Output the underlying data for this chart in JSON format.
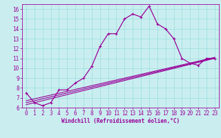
{
  "xlabel": "Windchill (Refroidissement éolien,°C)",
  "bg_color": "#caeef0",
  "line_color": "#990099",
  "grid_color": "#99dddd",
  "xlim": [
    -0.5,
    23.5
  ],
  "ylim": [
    6,
    16.5
  ],
  "yticks": [
    6,
    7,
    8,
    9,
    10,
    11,
    12,
    13,
    14,
    15,
    16
  ],
  "xticks": [
    0,
    1,
    2,
    3,
    4,
    5,
    6,
    7,
    8,
    9,
    10,
    11,
    12,
    13,
    14,
    15,
    16,
    17,
    18,
    19,
    20,
    21,
    22,
    23
  ],
  "line1_x": [
    0,
    1,
    2,
    3,
    4,
    5,
    6,
    7,
    8,
    9,
    10,
    11,
    12,
    13,
    14,
    15,
    16,
    17,
    18,
    19,
    20,
    21,
    22,
    23
  ],
  "line1_y": [
    7.5,
    6.5,
    6.2,
    6.5,
    7.8,
    7.8,
    8.5,
    9.0,
    10.2,
    12.2,
    13.5,
    13.5,
    15.0,
    15.5,
    15.2,
    16.3,
    14.5,
    14.0,
    13.0,
    11.0,
    10.5,
    10.3,
    11.0,
    11.0
  ],
  "line2_x": [
    0,
    23
  ],
  "line2_y": [
    6.3,
    11.0
  ],
  "line3_x": [
    0,
    23
  ],
  "line3_y": [
    6.5,
    11.05
  ],
  "line4_x": [
    0,
    23
  ],
  "line4_y": [
    6.7,
    11.1
  ],
  "tick_fontsize": 5.5,
  "xlabel_fontsize": 5.5
}
